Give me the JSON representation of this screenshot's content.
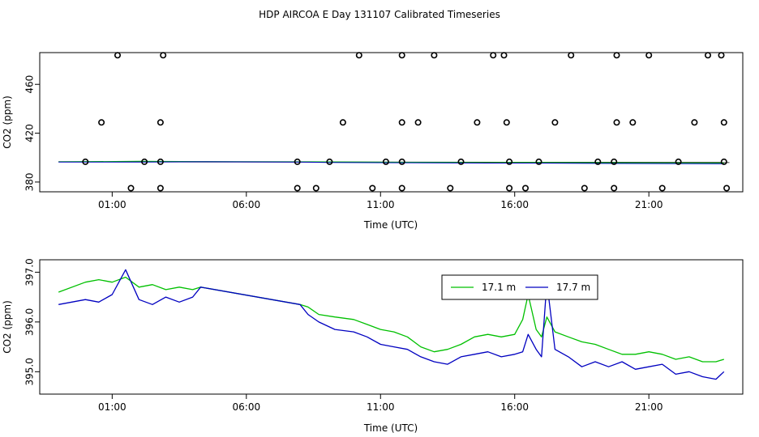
{
  "chart_data": [
    {
      "type": "scatter",
      "title": "HDP AIRCOA E  Day 131107  Calibrated Timeseries",
      "xlabel": "Time (UTC)",
      "ylabel": "CO2 (ppm)",
      "xlim": [
        -1.7,
        24.5
      ],
      "ylim": [
        372,
        486
      ],
      "x_ticks": [
        1,
        6,
        11,
        16,
        21
      ],
      "x_tick_labels": [
        "01:00",
        "06:00",
        "11:00",
        "16:00",
        "21:00"
      ],
      "y_ticks": [
        380,
        420,
        460
      ],
      "y_tick_labels": [
        "380",
        "420",
        "460"
      ],
      "grid": false,
      "points": [
        [
          0.0,
          396.6
        ],
        [
          0.6,
          428.8
        ],
        [
          1.2,
          483.8
        ],
        [
          1.7,
          375.0
        ],
        [
          2.2,
          396.6
        ],
        [
          2.8,
          396.6
        ],
        [
          2.8,
          428.8
        ],
        [
          2.8,
          375.0
        ],
        [
          2.9,
          483.8
        ],
        [
          7.9,
          396.6
        ],
        [
          7.9,
          375.0
        ],
        [
          8.6,
          375.0
        ],
        [
          9.1,
          396.6
        ],
        [
          9.6,
          428.8
        ],
        [
          10.2,
          483.8
        ],
        [
          10.7,
          375.0
        ],
        [
          11.2,
          396.6
        ],
        [
          11.8,
          396.6
        ],
        [
          11.8,
          428.8
        ],
        [
          11.8,
          483.8
        ],
        [
          11.8,
          375.0
        ],
        [
          12.4,
          428.8
        ],
        [
          13.0,
          483.8
        ],
        [
          13.6,
          375.0
        ],
        [
          14.0,
          396.6
        ],
        [
          14.6,
          428.8
        ],
        [
          15.2,
          483.8
        ],
        [
          15.6,
          483.8
        ],
        [
          15.7,
          428.8
        ],
        [
          15.8,
          396.6
        ],
        [
          15.8,
          375.0
        ],
        [
          16.4,
          375.0
        ],
        [
          16.9,
          396.6
        ],
        [
          17.5,
          428.8
        ],
        [
          18.1,
          483.8
        ],
        [
          18.6,
          375.0
        ],
        [
          19.1,
          396.6
        ],
        [
          19.7,
          396.6
        ],
        [
          19.7,
          375.0
        ],
        [
          19.8,
          428.8
        ],
        [
          19.8,
          483.8
        ],
        [
          20.4,
          428.8
        ],
        [
          21.0,
          483.8
        ],
        [
          21.5,
          375.0
        ],
        [
          22.1,
          396.6
        ],
        [
          22.7,
          428.8
        ],
        [
          23.2,
          483.8
        ],
        [
          23.7,
          483.8
        ],
        [
          23.8,
          428.8
        ],
        [
          23.8,
          396.6
        ],
        [
          23.9,
          375.0
        ]
      ],
      "line_series": [
        {
          "color": "#000000",
          "x": [
            -1.0,
            24.0
          ],
          "y": [
            396.6,
            396.0
          ]
        },
        {
          "color": "#00c000",
          "x": [
            -1.0,
            2.0,
            4.3,
            8.0,
            9.0,
            12.0,
            15.0,
            16.5,
            18.0,
            20.0,
            23.8
          ],
          "y": [
            396.6,
            397.0,
            396.8,
            396.6,
            396.5,
            396.2,
            396.0,
            396.1,
            395.9,
            395.8,
            395.6
          ]
        },
        {
          "color": "#0000c0",
          "x": [
            -1.0,
            2.0,
            4.3,
            8.0,
            9.0,
            12.0,
            15.0,
            16.5,
            18.0,
            20.0,
            23.8
          ],
          "y": [
            396.3,
            396.4,
            396.6,
            396.4,
            396.0,
            395.8,
            395.5,
            395.5,
            395.3,
            395.2,
            394.9
          ]
        }
      ]
    },
    {
      "type": "line",
      "title": "",
      "xlabel": "Time (UTC)",
      "ylabel": "CO2 (ppm)",
      "xlim": [
        -1.7,
        24.5
      ],
      "ylim": [
        394.55,
        397.25
      ],
      "x_ticks": [
        1,
        6,
        11,
        16,
        21
      ],
      "x_tick_labels": [
        "01:00",
        "06:00",
        "11:00",
        "16:00",
        "21:00"
      ],
      "y_ticks": [
        395.0,
        396.0,
        397.0
      ],
      "y_tick_labels": [
        "395.0",
        "396.0",
        "397.0"
      ],
      "grid": false,
      "legend": {
        "placement": "top-right",
        "entries": [
          {
            "label": "17.1 m",
            "color": "#00c000"
          },
          {
            "label": "17.7 m",
            "color": "#0000c0"
          }
        ]
      },
      "series": [
        {
          "name": "17.1 m",
          "color": "#00c000",
          "x": [
            -1.0,
            0.0,
            0.5,
            1.0,
            1.5,
            2.0,
            2.5,
            3.0,
            3.5,
            4.0,
            4.3,
            8.0,
            8.3,
            8.7,
            9.3,
            10.0,
            10.5,
            11.0,
            11.5,
            12.0,
            12.5,
            13.0,
            13.5,
            14.0,
            14.5,
            15.0,
            15.5,
            16.0,
            16.3,
            16.5,
            16.8,
            17.0,
            17.2,
            17.5,
            18.0,
            18.5,
            19.0,
            19.5,
            20.0,
            20.5,
            21.0,
            21.5,
            22.0,
            22.5,
            23.0,
            23.5,
            23.8
          ],
          "y": [
            396.6,
            396.8,
            396.85,
            396.8,
            396.9,
            396.7,
            396.75,
            396.65,
            396.7,
            396.65,
            396.7,
            396.35,
            396.3,
            396.15,
            396.1,
            396.05,
            395.95,
            395.85,
            395.8,
            395.7,
            395.5,
            395.4,
            395.45,
            395.55,
            395.7,
            395.75,
            395.7,
            395.75,
            396.05,
            396.55,
            395.85,
            395.7,
            396.1,
            395.8,
            395.7,
            395.6,
            395.55,
            395.45,
            395.35,
            395.35,
            395.4,
            395.35,
            395.25,
            395.3,
            395.2,
            395.2,
            395.25
          ]
        },
        {
          "name": "17.7 m",
          "color": "#0000c0",
          "x": [
            -1.0,
            0.0,
            0.5,
            1.0,
            1.5,
            2.0,
            2.5,
            3.0,
            3.5,
            4.0,
            4.3,
            8.0,
            8.3,
            8.7,
            9.3,
            10.0,
            10.5,
            11.0,
            11.5,
            12.0,
            12.5,
            13.0,
            13.5,
            14.0,
            14.5,
            15.0,
            15.5,
            16.0,
            16.3,
            16.5,
            16.8,
            17.0,
            17.2,
            17.5,
            18.0,
            18.5,
            19.0,
            19.5,
            20.0,
            20.5,
            21.0,
            21.5,
            22.0,
            22.5,
            23.0,
            23.5,
            23.8
          ],
          "y": [
            396.35,
            396.45,
            396.4,
            396.55,
            397.05,
            396.45,
            396.35,
            396.5,
            396.4,
            396.5,
            396.7,
            396.35,
            396.15,
            396.0,
            395.85,
            395.8,
            395.7,
            395.55,
            395.5,
            395.45,
            395.3,
            395.2,
            395.15,
            395.3,
            395.35,
            395.4,
            395.3,
            395.35,
            395.4,
            395.75,
            395.45,
            395.3,
            396.8,
            395.45,
            395.3,
            395.1,
            395.2,
            395.1,
            395.2,
            395.05,
            395.1,
            395.15,
            394.95,
            395.0,
            394.9,
            394.85,
            395.0
          ]
        }
      ]
    }
  ]
}
